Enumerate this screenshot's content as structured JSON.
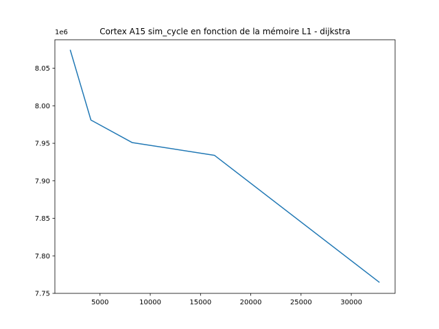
{
  "chart_data": {
    "type": "line",
    "title": "Cortex A15 sim_cycle en fonction de la mémoire L1 - dijkstra",
    "xlabel": "",
    "ylabel": "",
    "y_offset_label": "1e6",
    "xlim": [
      510,
      34360
    ],
    "ylim": [
      7.75,
      8.088
    ],
    "x_ticks": [
      5000,
      10000,
      15000,
      20000,
      25000,
      30000
    ],
    "x_tick_labels": [
      "5000",
      "10000",
      "15000",
      "20000",
      "25000",
      "30000"
    ],
    "y_ticks": [
      7.75,
      7.8,
      7.85,
      7.9,
      7.95,
      8.0,
      8.05
    ],
    "y_tick_labels": [
      "7.75",
      "7.80",
      "7.85",
      "7.90",
      "7.95",
      "8.00",
      "8.05"
    ],
    "grid": false,
    "series": [
      {
        "color": "#1f77b4",
        "x": [
          2048,
          4096,
          8192,
          16384,
          32768
        ],
        "y": [
          8.074,
          7.981,
          7.951,
          7.934,
          7.765
        ]
      }
    ]
  }
}
